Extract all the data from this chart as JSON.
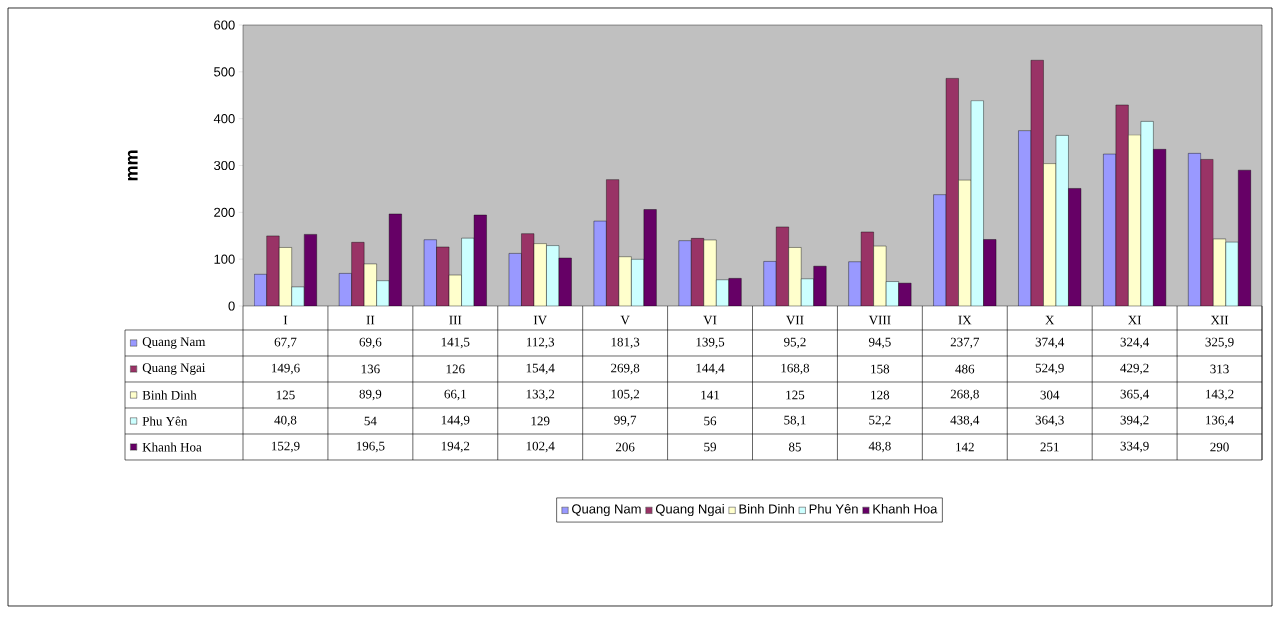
{
  "chart_data": {
    "type": "bar",
    "ylabel": "mm",
    "categories": [
      "I",
      "II",
      "III",
      "IV",
      "V",
      "VI",
      "VII",
      "VIII",
      "IX",
      "X",
      "XI",
      "XII"
    ],
    "ylim": [
      0,
      600
    ],
    "yticks": [
      0,
      100,
      200,
      300,
      400,
      500,
      600
    ],
    "grid": false,
    "legend": "bottom",
    "series": [
      {
        "name": "Quang Nam",
        "color": "#9999ff",
        "values": [
          67.7,
          69.6,
          141.5,
          112.3,
          181.3,
          139.5,
          95.2,
          94.5,
          237.7,
          374.4,
          324.4,
          325.9
        ],
        "value_labels": [
          "67,7",
          "69,6",
          "141,5",
          "112,3",
          "181,3",
          "139,5",
          "95,2",
          "94,5",
          "237,7",
          "374,4",
          "324,4",
          "325,9"
        ]
      },
      {
        "name": "Quang Ngai",
        "color": "#993366",
        "values": [
          149.6,
          136,
          126,
          154.4,
          269.8,
          144.4,
          168.8,
          158,
          486,
          524.9,
          429.2,
          313
        ],
        "value_labels": [
          "149,6",
          "136",
          "126",
          "154,4",
          "269,8",
          "144,4",
          "168,8",
          "158",
          "486",
          "524,9",
          "429,2",
          "313"
        ]
      },
      {
        "name": "Binh Dinh",
        "color": "#ffffcc",
        "values": [
          125,
          89.9,
          66.1,
          133.2,
          105.2,
          141,
          125,
          128,
          268.8,
          304,
          365.4,
          143.2
        ],
        "value_labels": [
          "125",
          "89,9",
          "66,1",
          "133,2",
          "105,2",
          "141",
          "125",
          "128",
          "268,8",
          "304",
          "365,4",
          "143,2"
        ]
      },
      {
        "name": "Phu Yên",
        "color": "#ccffff",
        "values": [
          40.8,
          54,
          144.9,
          129,
          99.7,
          56,
          58.1,
          52.2,
          438.4,
          364.3,
          394.2,
          136.4
        ],
        "value_labels": [
          "40,8",
          "54",
          "144,9",
          "129",
          "99,7",
          "56",
          "58,1",
          "52,2",
          "438,4",
          "364,3",
          "394,2",
          "136,4"
        ]
      },
      {
        "name": "Khanh Hoa",
        "color": "#660066",
        "values": [
          152.9,
          196.5,
          194.2,
          102.4,
          206,
          59,
          85,
          48.8,
          142,
          251,
          334.9,
          290
        ],
        "value_labels": [
          "152,9",
          "196,5",
          "194,2",
          "102,4",
          "206",
          "59",
          "85",
          "48,8",
          "142",
          "251",
          "334,9",
          "290"
        ]
      }
    ]
  }
}
